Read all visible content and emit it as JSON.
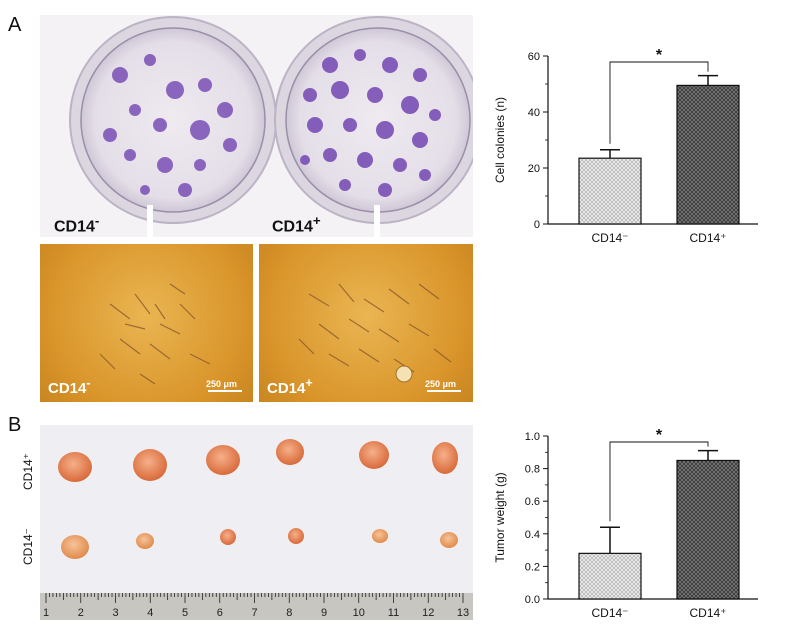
{
  "panels": {
    "a_letter": "A",
    "b_letter": "B"
  },
  "panel_a": {
    "plate_left_label": "CD14",
    "plate_left_sup": "-",
    "plate_right_label": "CD14",
    "plate_right_sup": "+",
    "micro_left_label": "CD14",
    "micro_left_sup": "-",
    "micro_right_label": "CD14",
    "micro_right_sup": "+",
    "scale_bar_left": "250 μm",
    "scale_bar_right": "250 μm"
  },
  "panel_b": {
    "row_top_label": "CD14⁺",
    "row_bottom_label": "CD14⁻",
    "ruler_numbers": [
      "1",
      "2",
      "3",
      "4",
      "5",
      "6",
      "7",
      "8",
      "9",
      "10",
      "11",
      "12",
      "13"
    ]
  },
  "chart_data": [
    {
      "type": "bar",
      "title": "",
      "categories": [
        "CD14⁻",
        "CD14⁺"
      ],
      "values": [
        23.5,
        49.5
      ],
      "errors": [
        3.0,
        3.5
      ],
      "xlabel": "",
      "ylabel": "Cell colonies (n)",
      "ylim": [
        0,
        60
      ],
      "yticks": [
        "0",
        "20",
        "40",
        "60"
      ],
      "significance": "*"
    },
    {
      "type": "bar",
      "title": "",
      "categories": [
        "CD14⁻",
        "CD14⁺"
      ],
      "values": [
        0.28,
        0.85
      ],
      "errors": [
        0.16,
        0.06
      ],
      "xlabel": "",
      "ylabel": "Tumor weight (g)",
      "ylim": [
        0,
        1.0
      ],
      "yticks": [
        "0.0",
        "0.2",
        "0.4",
        "0.6",
        "0.8",
        "1.0"
      ],
      "significance": "*"
    }
  ],
  "colors": {
    "bar_light": "#d9d9d9",
    "bar_dark": "#4a4a4a",
    "plate_bg": "#e9e4ea",
    "colony": "#7a4fb5",
    "micro_bg": "#e0a332",
    "tumor": "#e58a5a"
  }
}
